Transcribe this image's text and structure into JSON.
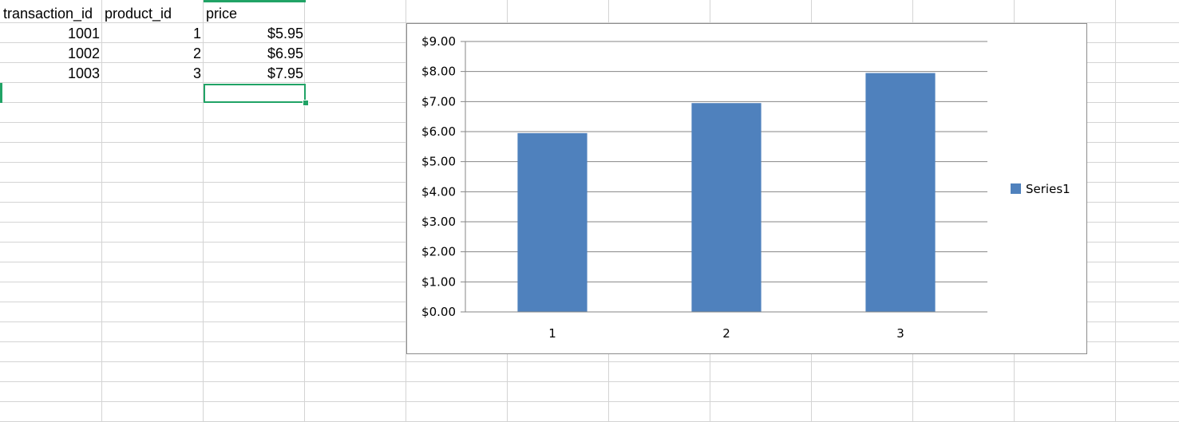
{
  "sheet": {
    "columns": [
      "transaction_id",
      "product_id",
      "price"
    ],
    "rows": [
      [
        "1001",
        "1",
        "$5.95"
      ],
      [
        "1002",
        "2",
        "$6.95"
      ],
      [
        "1003",
        "3",
        "$7.95"
      ]
    ],
    "selected_cell": "C5"
  },
  "colors": {
    "bar": "#4f81bd",
    "selection": "#21a366",
    "gridline": "#d4d4d4"
  },
  "chart_data": {
    "type": "bar",
    "categories": [
      "1",
      "2",
      "3"
    ],
    "series": [
      {
        "name": "Series1",
        "values": [
          5.95,
          6.95,
          7.95
        ]
      }
    ],
    "yticks": [
      "$0.00",
      "$1.00",
      "$2.00",
      "$3.00",
      "$4.00",
      "$5.00",
      "$6.00",
      "$7.00",
      "$8.00",
      "$9.00"
    ],
    "ylim": [
      0,
      9
    ],
    "grid": true,
    "legend": "right"
  }
}
